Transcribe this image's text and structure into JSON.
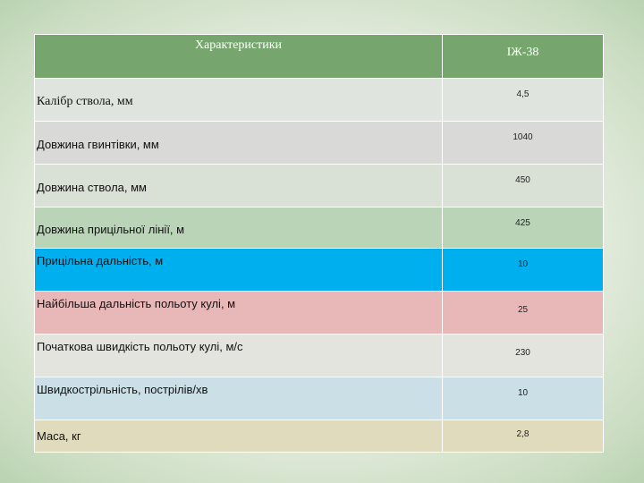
{
  "table": {
    "headers": [
      "Характеристики",
      "ІЖ-38"
    ],
    "rows": [
      {
        "label": "Калібр ствола, мм",
        "value": "4,5",
        "bg": "#e0e4de"
      },
      {
        "label": "Довжина гвинтівки, мм",
        "value": "1040",
        "bg": "#d9d9d8"
      },
      {
        "label": "Довжина ствола, мм",
        "value": "450",
        "bg": "#d9e0d6"
      },
      {
        "label": "Довжина прицільної лінії, м",
        "value": "425",
        "bg": "#b9d4b6"
      },
      {
        "label": "Прицільна дальність, м",
        "value": "10",
        "bg": "#00afee"
      },
      {
        "label": "Найбільша дальність польоту кулі, м",
        "value": "25",
        "bg": "#e8b8b8"
      },
      {
        "label": "Початкова швидкість польоту кулі, м/с",
        "value": "230",
        "bg": "#e4e4de"
      },
      {
        "label": "Швидкострільність, пострілів/хв",
        "value": "10",
        "bg": "#cadfe6"
      },
      {
        "label": "Маса, кг",
        "value": "2,8",
        "bg": "#e1dbbe"
      }
    ]
  },
  "colors": {
    "header_bg": "#76a66e",
    "header_text": "#ffffff",
    "background": "#e4ecdd"
  }
}
